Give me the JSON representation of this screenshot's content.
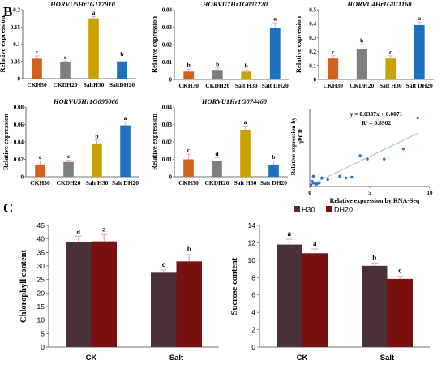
{
  "panel_labels": {
    "b": "B",
    "c": "C"
  },
  "chart_data": [
    {
      "type": "bar",
      "title": "HORVU5Hr1G117910",
      "ylabel": "Relative expression",
      "categories": [
        "CKH30",
        "CKDH20",
        "SaltH30",
        "SaltDH20"
      ],
      "values": [
        0.058,
        0.047,
        0.175,
        0.05
      ],
      "errors": [
        0.008,
        0.004,
        0.005,
        0.01
      ],
      "letters": [
        "c",
        "c",
        "a",
        "b"
      ],
      "colors": [
        "#d0621e",
        "#7f7f7f",
        "#c9a200",
        "#1f6fc0"
      ],
      "ylim": [
        0,
        0.2
      ],
      "yticks": [
        "0",
        "0.05",
        "0.1",
        "0.15",
        "0.2"
      ],
      "grid": false
    },
    {
      "type": "bar",
      "title": "HORVU7Hr1G007220",
      "ylabel": "Relative expression",
      "categories": [
        "CKH30",
        "CKDH20",
        "Salt H30",
        "Salt DH20"
      ],
      "values": [
        0.0045,
        0.0055,
        0.0045,
        0.0295
      ],
      "errors": [
        0.0015,
        0.001,
        0.001,
        0.003
      ],
      "letters": [
        "b",
        "b",
        "b",
        "a"
      ],
      "colors": [
        "#d0621e",
        "#7f7f7f",
        "#c9a200",
        "#1f6fc0"
      ],
      "ylim": [
        0,
        0.04
      ],
      "yticks": [
        "0",
        "0.01",
        "0.02",
        "0.03",
        "0.04"
      ],
      "grid": false
    },
    {
      "type": "bar",
      "title": "HORVU4Hr1G011160",
      "ylabel": "Relative expression",
      "categories": [
        "CKH30",
        "CKDH20",
        "Salt H30",
        "Salt DH20"
      ],
      "values": [
        0.15,
        0.22,
        0.15,
        0.39
      ],
      "errors": [
        0.02,
        0.03,
        0.02,
        0.02
      ],
      "letters": [
        "c",
        "b",
        "c",
        "a"
      ],
      "colors": [
        "#d0621e",
        "#7f7f7f",
        "#c9a200",
        "#1f6fc0"
      ],
      "ylim": [
        0,
        0.5
      ],
      "yticks": [
        "0",
        "0.1",
        "0.2",
        "0.3",
        "0.4",
        "0.5"
      ],
      "grid": false
    },
    {
      "type": "bar",
      "title": "HORVU5Hr1G095060",
      "ylabel": "Relative expression",
      "categories": [
        "CKH30",
        "CKDH20",
        "Salt H30",
        "Salt DH20"
      ],
      "values": [
        0.014,
        0.017,
        0.038,
        0.059
      ],
      "errors": [
        0.004,
        0.002,
        0.004,
        0.004
      ],
      "letters": [
        "c",
        "c",
        "b",
        "a"
      ],
      "colors": [
        "#d0621e",
        "#7f7f7f",
        "#c9a200",
        "#1f6fc0"
      ],
      "ylim": [
        0,
        0.08
      ],
      "yticks": [
        "0",
        "0.02",
        "0.04",
        "0.06",
        "0.08"
      ],
      "grid": false
    },
    {
      "type": "bar",
      "title": "HORVU1Hr1G074460",
      "ylabel": "Relative expression",
      "categories": [
        "CKH30",
        "CKDH20",
        "Salt H30",
        "Salt DH20"
      ],
      "values": [
        0.01,
        0.009,
        0.027,
        0.007
      ],
      "errors": [
        0.003,
        0.002,
        0.002,
        0.002
      ],
      "letters": [
        "c",
        "d",
        "a",
        "b"
      ],
      "colors": [
        "#d0621e",
        "#7f7f7f",
        "#c9a200",
        "#1f6fc0"
      ],
      "ylim": [
        0,
        0.04
      ],
      "yticks": [
        "0",
        "0.01",
        "0.02",
        "0.03",
        "0.04"
      ],
      "grid": false
    },
    {
      "type": "scatter",
      "xlabel": "Relative expression by RNA-Seq",
      "ylabel": "qPCR",
      "ylabel_prefix": "Relative expression by",
      "equation": "y = 0.0337x + 0.0071",
      "r2": "R² = 0.8902",
      "points": [
        [
          0.1,
          0.01
        ],
        [
          0.2,
          0.03
        ],
        [
          0.3,
          0.02
        ],
        [
          0.5,
          0.012
        ],
        [
          0.8,
          0.02
        ],
        [
          1.0,
          0.05
        ],
        [
          1.5,
          0.04
        ],
        [
          2.5,
          0.06
        ],
        [
          3.0,
          0.05
        ],
        [
          3.5,
          0.055
        ],
        [
          4.2,
          0.18
        ],
        [
          4.8,
          0.16
        ],
        [
          6.2,
          0.16
        ],
        [
          7.8,
          0.22
        ],
        [
          9.0,
          0.4
        ],
        [
          0.3,
          0.06
        ],
        [
          0.6,
          0.015
        ]
      ],
      "trend": {
        "slope": 0.0337,
        "intercept": 0.0071,
        "x_range": [
          0,
          9
        ]
      },
      "xlim": [
        0,
        10
      ],
      "xticks": [
        "0",
        "5",
        "10"
      ],
      "ylim": [
        0,
        0.45
      ],
      "grid": false
    },
    {
      "type": "bar",
      "ylabel": "Chlorophyll content",
      "categories": [
        "CK",
        "Salt"
      ],
      "series": [
        {
          "name": "H30",
          "values": [
            38.8,
            27.5
          ],
          "errors": [
            2.2,
            1.0
          ],
          "letters": [
            "a",
            "c"
          ],
          "color": "#4a3039"
        },
        {
          "name": "DH20",
          "values": [
            39.1,
            31.7
          ],
          "errors": [
            2.5,
            2.5
          ],
          "letters": [
            "a",
            "b"
          ],
          "color": "#7a1010"
        }
      ],
      "ylim": [
        0,
        45
      ],
      "yticks": [
        "0",
        "5",
        "10",
        "15",
        "20",
        "25",
        "30",
        "35",
        "40",
        "45"
      ],
      "legend": "top",
      "grid": false
    },
    {
      "type": "bar",
      "ylabel": "Sucrose content",
      "categories": [
        "CK",
        "Salt"
      ],
      "series": [
        {
          "name": "H30",
          "values": [
            11.8,
            9.35
          ],
          "errors": [
            0.6,
            0.3
          ],
          "letters": [
            "a",
            "b"
          ],
          "color": "#4a3039"
        },
        {
          "name": "DH20",
          "values": [
            10.8,
            7.85
          ],
          "errors": [
            0.5,
            0.3
          ],
          "letters": [
            "a",
            "c"
          ],
          "color": "#7a1010"
        }
      ],
      "ylim": [
        0,
        14
      ],
      "yticks": [
        "0",
        "2",
        "4",
        "6",
        "8",
        "10",
        "12",
        "14"
      ],
      "legend": "top",
      "grid": false
    }
  ]
}
